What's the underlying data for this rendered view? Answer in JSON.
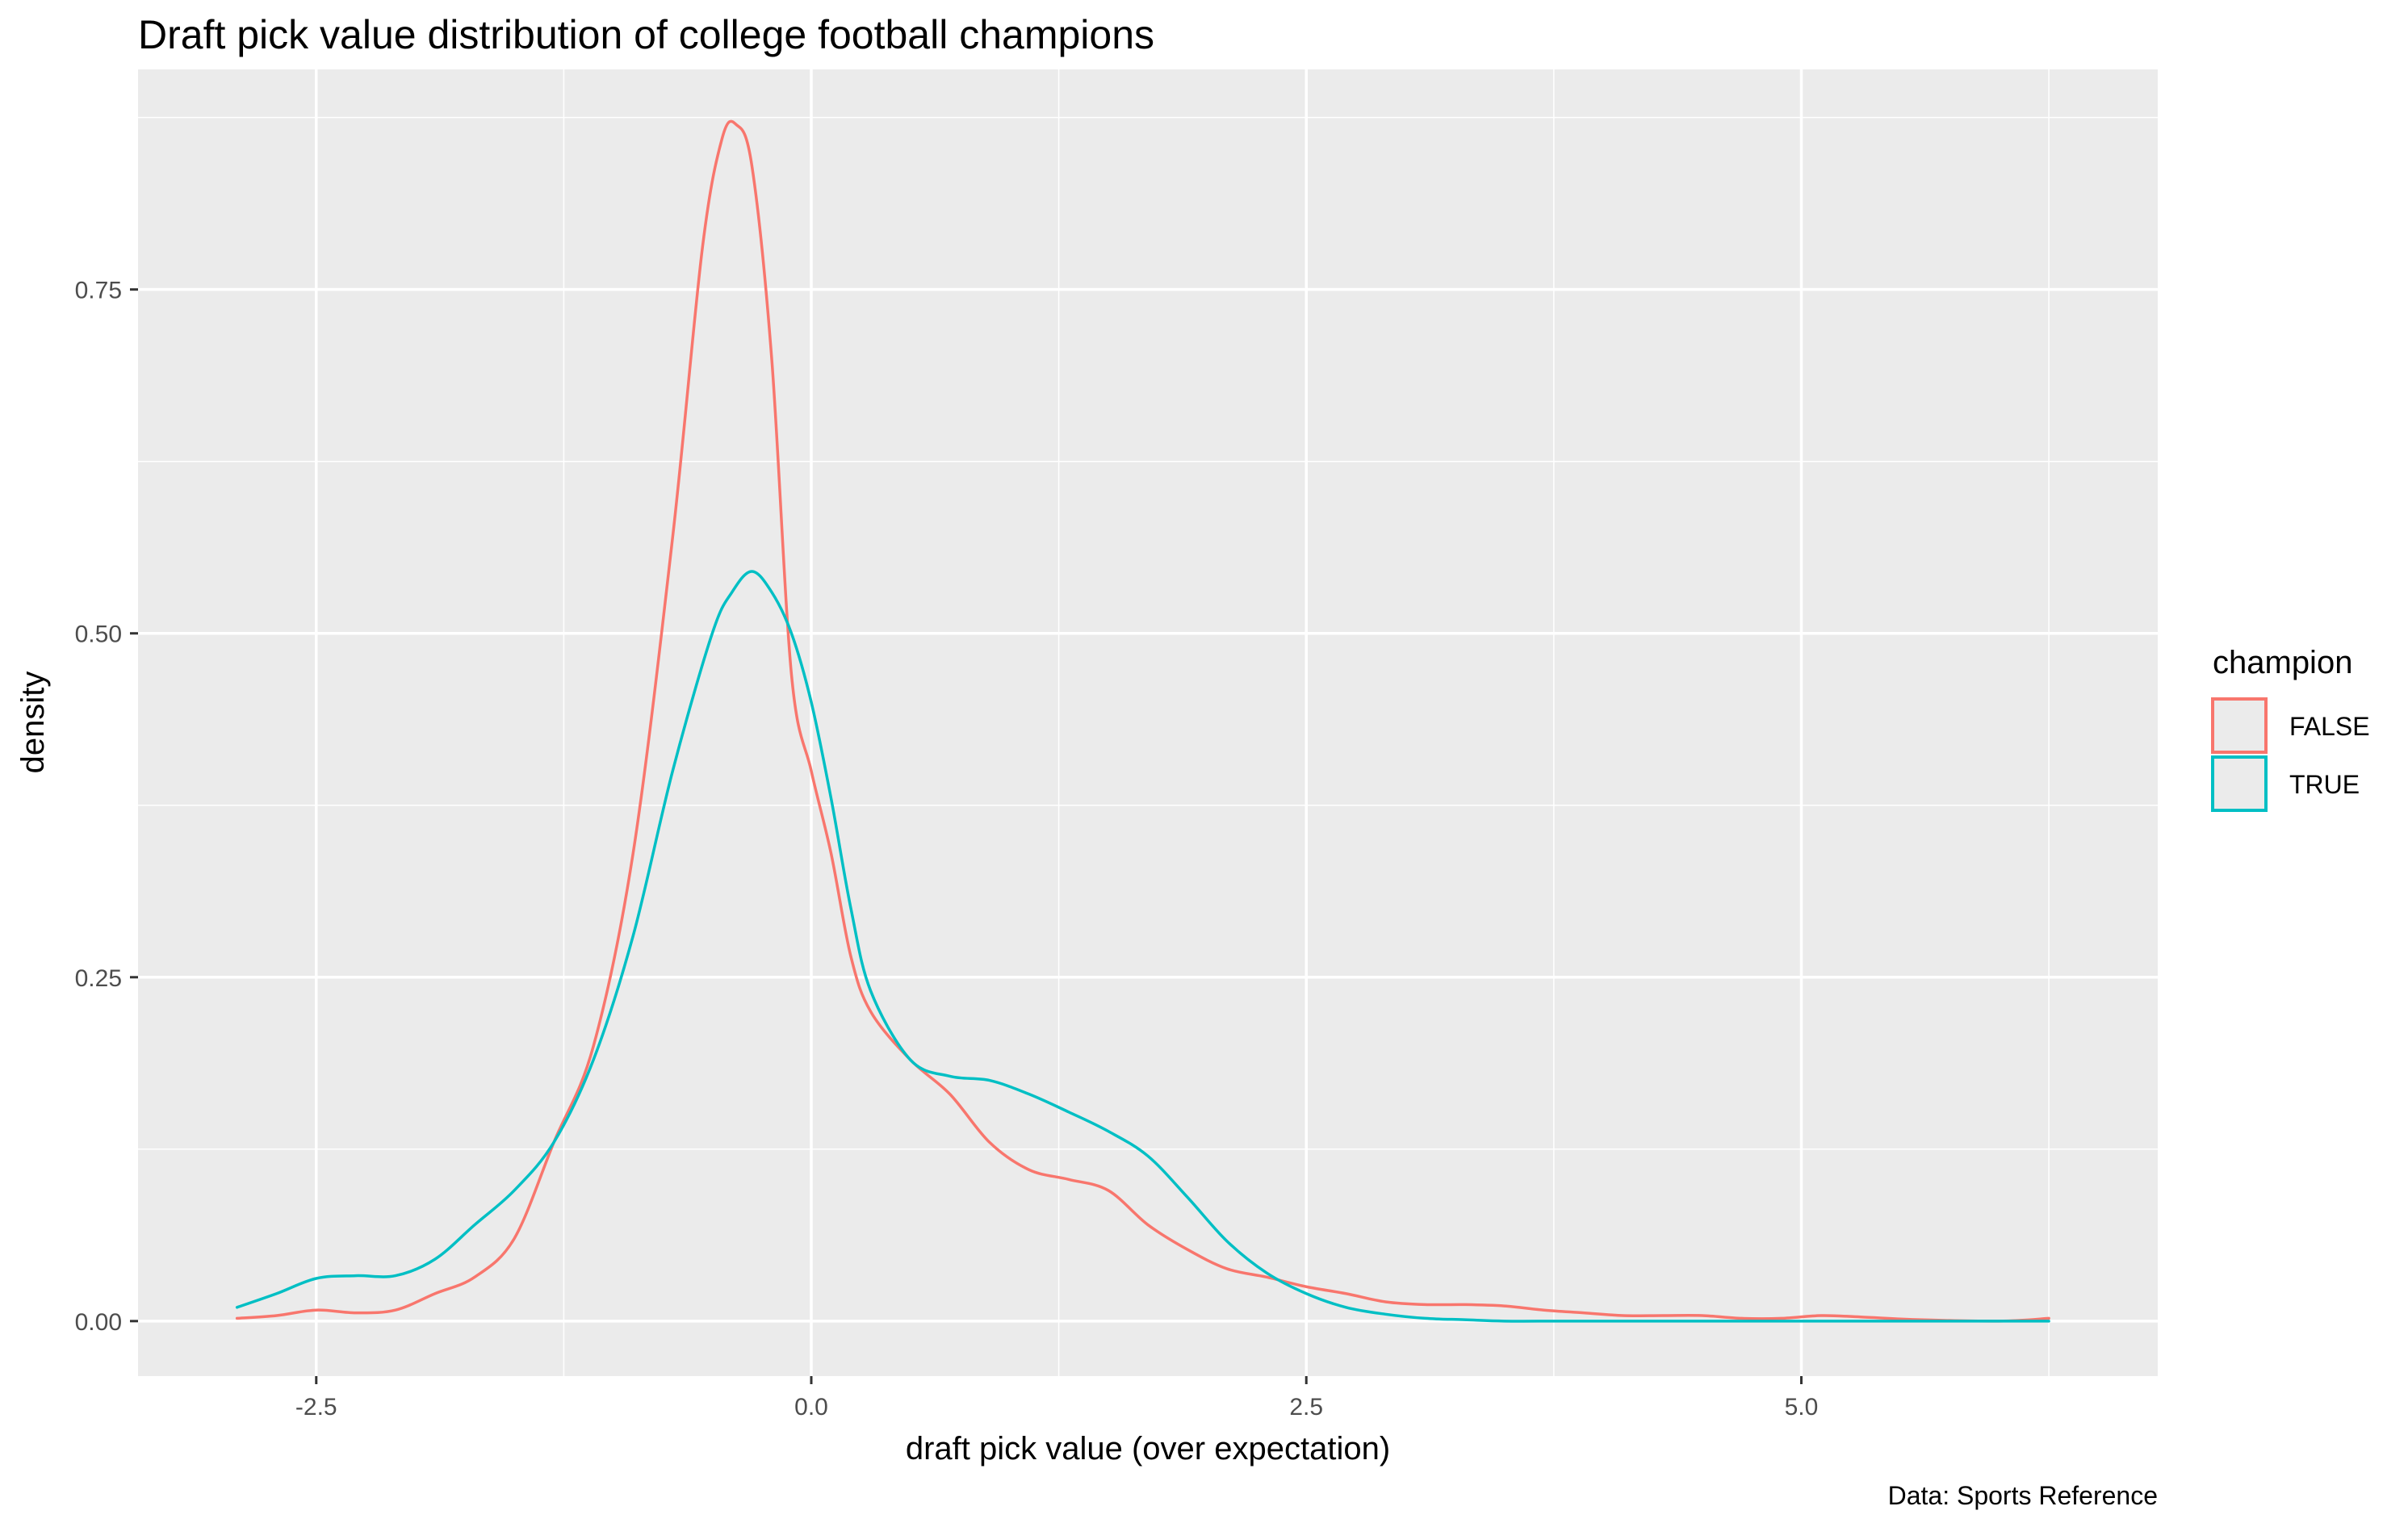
{
  "chart_data": {
    "type": "area",
    "title": "Draft pick value distribution of college football champions",
    "xlabel": "draft pick value (over expectation)",
    "ylabel": "density",
    "caption": "Data: Sports Reference",
    "xlim": [
      -3.4,
      6.8
    ],
    "ylim": [
      -0.04,
      0.91
    ],
    "x_ticks": [
      -2.5,
      0.0,
      2.5,
      5.0
    ],
    "x_tick_labels": [
      "-2.5",
      "0.0",
      "2.5",
      "5.0"
    ],
    "y_ticks": [
      0.0,
      0.25,
      0.5,
      0.75
    ],
    "y_tick_labels": [
      "0.00",
      "0.25",
      "0.50",
      "0.75"
    ],
    "grid": true,
    "legend": {
      "title": "champion",
      "position": "right"
    },
    "series": [
      {
        "name": "FALSE",
        "color": "#F8766D",
        "x": [
          -2.9,
          -2.7,
          -2.5,
          -2.3,
          -2.1,
          -1.9,
          -1.7,
          -1.5,
          -1.3,
          -1.1,
          -0.9,
          -0.7,
          -0.55,
          -0.45,
          -0.38,
          -0.3,
          -0.2,
          -0.1,
          0.0,
          0.1,
          0.2,
          0.3,
          0.5,
          0.7,
          0.9,
          1.1,
          1.3,
          1.5,
          1.7,
          1.9,
          2.1,
          2.3,
          2.5,
          2.7,
          2.9,
          3.1,
          3.3,
          3.5,
          3.7,
          3.9,
          4.1,
          4.3,
          4.5,
          4.7,
          4.9,
          5.1,
          5.3,
          5.6,
          6.0,
          6.25
        ],
        "y": [
          0.002,
          0.004,
          0.008,
          0.006,
          0.008,
          0.02,
          0.032,
          0.06,
          0.13,
          0.2,
          0.34,
          0.57,
          0.78,
          0.86,
          0.87,
          0.84,
          0.7,
          0.47,
          0.4,
          0.34,
          0.265,
          0.225,
          0.19,
          0.165,
          0.13,
          0.11,
          0.103,
          0.095,
          0.07,
          0.052,
          0.038,
          0.032,
          0.025,
          0.02,
          0.014,
          0.012,
          0.012,
          0.011,
          0.008,
          0.006,
          0.004,
          0.004,
          0.004,
          0.002,
          0.002,
          0.004,
          0.003,
          0.001,
          0.0,
          0.002
        ]
      },
      {
        "name": "TRUE",
        "color": "#00BFC4",
        "x": [
          -2.9,
          -2.7,
          -2.5,
          -2.3,
          -2.1,
          -1.9,
          -1.7,
          -1.5,
          -1.3,
          -1.1,
          -0.9,
          -0.7,
          -0.5,
          -0.4,
          -0.3,
          -0.2,
          -0.1,
          0.0,
          0.1,
          0.2,
          0.3,
          0.5,
          0.7,
          0.9,
          1.1,
          1.3,
          1.5,
          1.7,
          1.9,
          2.1,
          2.3,
          2.5,
          2.7,
          2.9,
          3.1,
          3.3,
          3.5,
          3.8,
          4.2,
          5.0,
          6.25
        ],
        "y": [
          0.01,
          0.02,
          0.031,
          0.033,
          0.033,
          0.045,
          0.07,
          0.095,
          0.13,
          0.19,
          0.28,
          0.4,
          0.5,
          0.53,
          0.545,
          0.53,
          0.5,
          0.45,
          0.38,
          0.3,
          0.24,
          0.19,
          0.178,
          0.175,
          0.165,
          0.152,
          0.138,
          0.12,
          0.09,
          0.058,
          0.035,
          0.02,
          0.01,
          0.005,
          0.002,
          0.001,
          0.0,
          0.0,
          0.0,
          0.0,
          0.0
        ]
      }
    ]
  }
}
